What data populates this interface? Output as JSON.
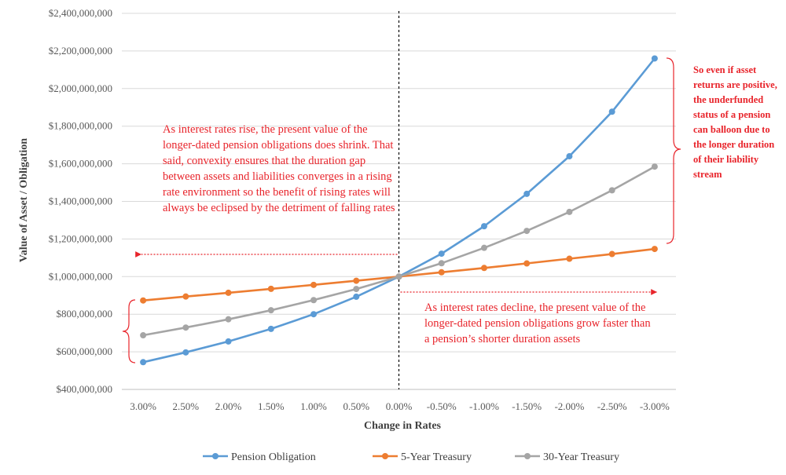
{
  "chart_data": {
    "type": "line",
    "title": "",
    "xlabel": "Change in Rates",
    "ylabel": "Value of Asset / Obligation",
    "categories": [
      "3.00%",
      "2.50%",
      "2.00%",
      "1.50%",
      "1.00%",
      "0.50%",
      "0.00%",
      "-0.50%",
      "-1.00%",
      "-1.50%",
      "-2.00%",
      "-2.50%",
      "-3.00%"
    ],
    "ylim": [
      400000000,
      2400000000
    ],
    "yticks": [
      "$400,000,000",
      "$600,000,000",
      "$800,000,000",
      "$1,000,000,000",
      "$1,200,000,000",
      "$1,400,000,000",
      "$1,600,000,000",
      "$1,800,000,000",
      "$2,000,000,000",
      "$2,200,000,000",
      "$2,400,000,000"
    ],
    "grid": true,
    "legend": "bottom",
    "series": [
      {
        "name": "Pension Obligation",
        "color": "#5b9bd5",
        "values": [
          545000000,
          597000000,
          655000000,
          722000000,
          800000000,
          893000000,
          1000000000,
          1122000000,
          1268000000,
          1440000000,
          1640000000,
          1877000000,
          2160000000
        ]
      },
      {
        "name": "5-Year Treasury",
        "color": "#ed7d31",
        "values": [
          873000000,
          894000000,
          914000000,
          935000000,
          956000000,
          978000000,
          1000000000,
          1023000000,
          1046000000,
          1070000000,
          1095000000,
          1120000000,
          1147000000
        ]
      },
      {
        "name": "30-Year Treasury",
        "color": "#a5a5a5",
        "values": [
          688000000,
          729000000,
          773000000,
          821000000,
          875000000,
          934000000,
          1000000000,
          1071000000,
          1153000000,
          1243000000,
          1344000000,
          1459000000,
          1585000000
        ]
      }
    ],
    "annotations": {
      "rising": "As interest rates rise, the present value of the longer-dated pension obligations does shrink.  That said, convexity ensures that the duration gap between assets and liabilities converges in a rising rate environment so the benefit of rising rates will always be eclipsed by the detriment of falling rates",
      "declining": "As interest rates decline, the present value of the longer-dated pension obligations grow faster than a pension’s shorter duration assets",
      "side": "So even if asset returns are positive, the underfunded status of a pension can balloon due to the longer duration of their liability stream"
    }
  }
}
